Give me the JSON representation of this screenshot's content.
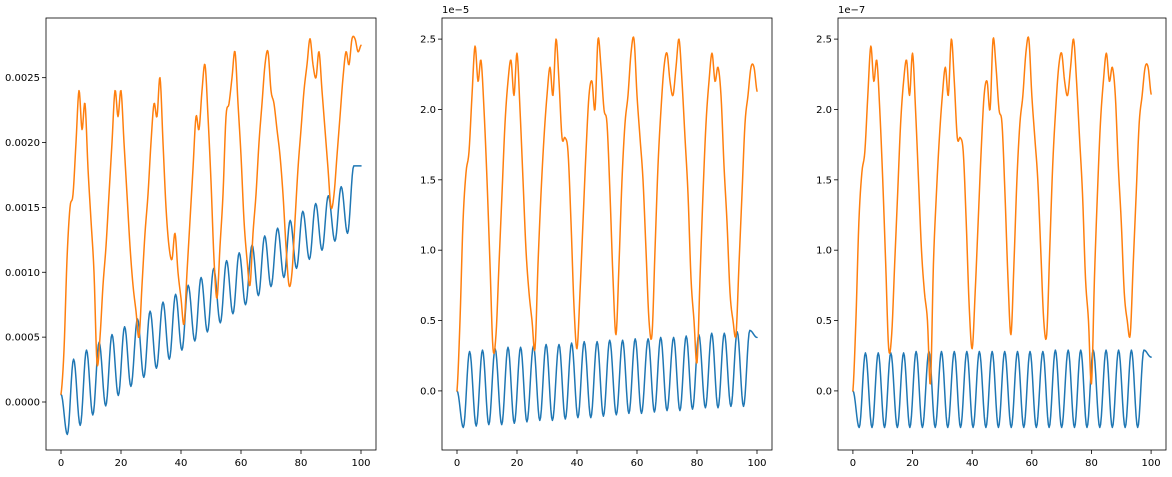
{
  "colors": {
    "series_0": "#1f77b4",
    "series_1": "#ff7f0e"
  },
  "chart_data": [
    {
      "type": "line",
      "xlim": [
        -5,
        105
      ],
      "ylim": [
        -0.00037,
        0.00296
      ],
      "offset_text": "",
      "x_ticks": [
        0,
        20,
        40,
        60,
        80,
        100
      ],
      "x_tick_labels": [
        "0",
        "20",
        "40",
        "60",
        "80",
        "100"
      ],
      "y_ticks": [
        0,
        0.0005,
        0.001,
        0.0015,
        0.002,
        0.0025
      ],
      "y_tick_labels": [
        "0.0000",
        "0.0005",
        "0.0010",
        "0.0015",
        "0.0020",
        "0.0025"
      ],
      "series": [
        {
          "color": "#1f77b4",
          "kind": "oscillation",
          "x": [
            0,
            2.1,
            4.2,
            6.4,
            8.5,
            10.6,
            12.7,
            14.9,
            17.0,
            19.1,
            21.2,
            23.3,
            25.5,
            27.6,
            29.7,
            31.8,
            34.0,
            36.1,
            38.2,
            40.3,
            42.4,
            44.6,
            46.7,
            48.8,
            50.9,
            53.1,
            55.2,
            57.3,
            59.4,
            61.5,
            63.7,
            65.8,
            67.9,
            70.0,
            72.2,
            74.3,
            76.4,
            78.5,
            80.6,
            82.8,
            84.9,
            87.0,
            89.1,
            91.3,
            93.4,
            95.5,
            97.6,
            100
          ],
          "y": [
            6e-05,
            -0.00025,
            0.00033,
            -0.00018,
            0.0004,
            -0.0001,
            0.00046,
            -3e-05,
            0.00052,
            5e-05,
            0.00058,
            0.00012,
            0.00064,
            0.00019,
            0.0007,
            0.00026,
            0.00077,
            0.00033,
            0.00083,
            0.0004,
            0.0009,
            0.00047,
            0.00096,
            0.00054,
            0.00103,
            0.00061,
            0.00109,
            0.00068,
            0.00115,
            0.00075,
            0.00121,
            0.00082,
            0.00128,
            0.00089,
            0.00134,
            0.00096,
            0.0014,
            0.00103,
            0.00147,
            0.0011,
            0.00153,
            0.00117,
            0.00159,
            0.00124,
            0.00166,
            0.0013,
            0.00182,
            0.00182
          ]
        },
        {
          "color": "#ff7f0e",
          "kind": "pulses",
          "x": [
            0,
            1,
            2,
            3,
            4,
            5,
            6,
            7,
            8,
            9,
            10,
            11,
            12,
            13,
            14,
            15,
            16,
            17,
            18,
            19,
            20,
            21,
            22,
            23,
            24,
            25,
            26,
            27,
            28,
            29,
            30,
            31,
            32,
            33,
            34,
            35,
            36,
            37,
            38,
            39,
            40,
            41,
            42,
            43,
            44,
            45,
            46,
            47,
            48,
            49,
            50,
            51,
            52,
            53,
            54,
            55,
            56,
            57,
            58,
            59,
            60,
            61,
            62,
            63,
            64,
            65,
            66,
            67,
            68,
            69,
            70,
            71,
            72,
            73,
            74,
            75,
            76,
            77,
            78,
            79,
            80,
            81,
            82,
            83,
            84,
            85,
            86,
            87,
            88,
            89,
            90,
            91,
            92,
            93,
            94,
            95,
            96,
            97,
            98,
            99,
            100
          ],
          "y": [
            6e-05,
            0.0004,
            0.0011,
            0.0015,
            0.0016,
            0.002,
            0.0024,
            0.0021,
            0.0023,
            0.0018,
            0.0014,
            0.001,
            0.0003,
            0.0005,
            0.0009,
            0.0012,
            0.0016,
            0.002,
            0.0024,
            0.0022,
            0.0024,
            0.002,
            0.0016,
            0.0012,
            0.0009,
            0.0007,
            0.0005,
            0.0009,
            0.0013,
            0.0016,
            0.002,
            0.0023,
            0.0022,
            0.0025,
            0.002,
            0.0015,
            0.0012,
            0.0011,
            0.0013,
            0.001,
            0.0008,
            0.0006,
            0.001,
            0.0014,
            0.0018,
            0.0022,
            0.0021,
            0.0024,
            0.0026,
            0.0022,
            0.0017,
            0.0011,
            0.0008,
            0.0012,
            0.0016,
            0.0022,
            0.0023,
            0.0025,
            0.0027,
            0.0023,
            0.0019,
            0.0014,
            0.0011,
            0.0009,
            0.0013,
            0.0016,
            0.002,
            0.0023,
            0.0026,
            0.0027,
            0.0024,
            0.0023,
            0.0021,
            0.0019,
            0.0016,
            0.0012,
            0.0009,
            0.001,
            0.0014,
            0.0018,
            0.0021,
            0.0024,
            0.0026,
            0.0028,
            0.0026,
            0.0025,
            0.0027,
            0.0024,
            0.0021,
            0.0018,
            0.0015,
            0.0016,
            0.0019,
            0.0022,
            0.0025,
            0.0027,
            0.0026,
            0.0028,
            0.0028,
            0.0027,
            0.00275
          ]
        }
      ]
    },
    {
      "type": "line",
      "xlim": [
        -5,
        105
      ],
      "ylim": [
        -0.42,
        2.65
      ],
      "offset_text": "1e−5",
      "x_ticks": [
        0,
        20,
        40,
        60,
        80,
        100
      ],
      "x_tick_labels": [
        "0",
        "20",
        "40",
        "60",
        "80",
        "100"
      ],
      "y_ticks": [
        0,
        0.5,
        1,
        1.5,
        2,
        2.5
      ],
      "y_tick_labels": [
        "0.0",
        "0.5",
        "1.0",
        "1.5",
        "2.0",
        "2.5"
      ],
      "series": [
        {
          "color": "#1f77b4",
          "kind": "oscillation",
          "x": [
            0,
            2.1,
            4.2,
            6.4,
            8.5,
            10.6,
            12.7,
            14.9,
            17.0,
            19.1,
            21.2,
            23.3,
            25.5,
            27.6,
            29.7,
            31.8,
            34.0,
            36.1,
            38.2,
            40.3,
            42.4,
            44.6,
            46.7,
            48.8,
            50.9,
            53.1,
            55.2,
            57.3,
            59.4,
            61.5,
            63.7,
            65.8,
            67.9,
            70.0,
            72.2,
            74.3,
            76.4,
            78.5,
            80.6,
            82.8,
            84.9,
            87.0,
            89.1,
            91.3,
            93.4,
            95.5,
            97.6,
            100
          ],
          "y": [
            0.0,
            -0.26,
            0.28,
            -0.25,
            0.29,
            -0.24,
            0.3,
            -0.24,
            0.31,
            -0.23,
            0.31,
            -0.22,
            0.32,
            -0.21,
            0.33,
            -0.21,
            0.33,
            -0.2,
            0.34,
            -0.19,
            0.35,
            -0.19,
            0.35,
            -0.18,
            0.36,
            -0.17,
            0.36,
            -0.16,
            0.37,
            -0.16,
            0.37,
            -0.15,
            0.38,
            -0.14,
            0.38,
            -0.14,
            0.39,
            -0.13,
            0.4,
            -0.12,
            0.41,
            -0.12,
            0.41,
            -0.11,
            0.42,
            -0.11,
            0.43,
            0.38
          ]
        },
        {
          "color": "#ff7f0e",
          "kind": "pulses",
          "x": [
            0,
            1,
            2,
            3,
            4,
            5,
            6,
            7,
            8,
            9,
            10,
            11,
            12,
            13,
            14,
            15,
            16,
            17,
            18,
            19,
            20,
            21,
            22,
            23,
            24,
            25,
            26,
            27,
            28,
            29,
            30,
            31,
            32,
            33,
            34,
            35,
            36,
            37,
            38,
            39,
            40,
            41,
            42,
            43,
            44,
            45,
            46,
            47,
            48,
            49,
            50,
            51,
            52,
            53,
            54,
            55,
            56,
            57,
            58,
            59,
            60,
            61,
            62,
            63,
            64,
            65,
            66,
            67,
            68,
            69,
            70,
            71,
            72,
            73,
            74,
            75,
            76,
            77,
            78,
            79,
            80,
            81,
            82,
            83,
            84,
            85,
            86,
            87,
            88,
            89,
            90,
            91,
            92,
            93,
            94,
            95,
            96,
            97,
            98,
            99,
            100
          ],
          "y": [
            0.0,
            0.5,
            1.2,
            1.55,
            1.7,
            2.1,
            2.45,
            2.2,
            2.35,
            2.0,
            1.5,
            0.9,
            0.3,
            0.4,
            0.9,
            1.4,
            1.9,
            2.2,
            2.35,
            2.1,
            2.4,
            2.0,
            1.5,
            1.0,
            0.7,
            0.5,
            0.3,
            0.9,
            1.4,
            1.8,
            2.1,
            2.3,
            2.1,
            2.5,
            2.2,
            1.8,
            1.8,
            1.7,
            1.2,
            0.6,
            0.3,
            0.7,
            1.2,
            1.7,
            2.1,
            2.2,
            2.0,
            2.5,
            2.3,
            2.0,
            1.9,
            1.4,
            0.8,
            0.4,
            0.9,
            1.5,
            1.9,
            2.1,
            2.4,
            2.5,
            2.1,
            1.8,
            1.5,
            1.0,
            0.5,
            0.4,
            1.0,
            1.6,
            2.0,
            2.3,
            2.4,
            2.2,
            2.1,
            2.3,
            2.5,
            2.2,
            1.8,
            1.4,
            0.8,
            0.5,
            0.2,
            0.8,
            1.4,
            1.9,
            2.2,
            2.4,
            2.2,
            2.3,
            2.1,
            1.6,
            1.2,
            0.7,
            0.5,
            0.4,
            0.9,
            1.4,
            1.9,
            2.1,
            2.3,
            2.3,
            2.13
          ]
        }
      ]
    },
    {
      "type": "line",
      "xlim": [
        -5,
        105
      ],
      "ylim": [
        -0.42,
        2.65
      ],
      "offset_text": "1e−7",
      "x_ticks": [
        0,
        20,
        40,
        60,
        80,
        100
      ],
      "x_tick_labels": [
        "0",
        "20",
        "40",
        "60",
        "80",
        "100"
      ],
      "y_ticks": [
        0,
        0.5,
        1,
        1.5,
        2,
        2.5
      ],
      "y_tick_labels": [
        "0.0",
        "0.5",
        "1.0",
        "1.5",
        "2.0",
        "2.5"
      ],
      "series": [
        {
          "color": "#1f77b4",
          "kind": "oscillation",
          "x": [
            0,
            2.1,
            4.2,
            6.4,
            8.5,
            10.6,
            12.7,
            14.9,
            17.0,
            19.1,
            21.2,
            23.3,
            25.5,
            27.6,
            29.7,
            31.8,
            34.0,
            36.1,
            38.2,
            40.3,
            42.4,
            44.6,
            46.7,
            48.8,
            50.9,
            53.1,
            55.2,
            57.3,
            59.4,
            61.5,
            63.7,
            65.8,
            67.9,
            70.0,
            72.2,
            74.3,
            76.4,
            78.5,
            80.6,
            82.8,
            84.9,
            87.0,
            89.1,
            91.3,
            93.4,
            95.5,
            97.6,
            100
          ],
          "y": [
            0.0,
            -0.26,
            0.27,
            -0.26,
            0.27,
            -0.26,
            0.27,
            -0.26,
            0.27,
            -0.26,
            0.28,
            -0.26,
            0.28,
            -0.26,
            0.28,
            -0.26,
            0.28,
            -0.26,
            0.28,
            -0.26,
            0.28,
            -0.26,
            0.28,
            -0.26,
            0.28,
            -0.26,
            0.28,
            -0.26,
            0.28,
            -0.26,
            0.28,
            -0.26,
            0.29,
            -0.26,
            0.29,
            -0.26,
            0.29,
            -0.26,
            0.29,
            -0.26,
            0.29,
            -0.26,
            0.29,
            -0.26,
            0.29,
            -0.26,
            0.29,
            0.24
          ]
        },
        {
          "color": "#ff7f0e",
          "kind": "pulses",
          "x": [
            0,
            1,
            2,
            3,
            4,
            5,
            6,
            7,
            8,
            9,
            10,
            11,
            12,
            13,
            14,
            15,
            16,
            17,
            18,
            19,
            20,
            21,
            22,
            23,
            24,
            25,
            26,
            27,
            28,
            29,
            30,
            31,
            32,
            33,
            34,
            35,
            36,
            37,
            38,
            39,
            40,
            41,
            42,
            43,
            44,
            45,
            46,
            47,
            48,
            49,
            50,
            51,
            52,
            53,
            54,
            55,
            56,
            57,
            58,
            59,
            60,
            61,
            62,
            63,
            64,
            65,
            66,
            67,
            68,
            69,
            70,
            71,
            72,
            73,
            74,
            75,
            76,
            77,
            78,
            79,
            80,
            81,
            82,
            83,
            84,
            85,
            86,
            87,
            88,
            89,
            90,
            91,
            92,
            93,
            94,
            95,
            96,
            97,
            98,
            99,
            100
          ],
          "y": [
            0.0,
            0.5,
            1.2,
            1.55,
            1.7,
            2.1,
            2.45,
            2.2,
            2.35,
            2.0,
            1.5,
            0.9,
            0.3,
            0.4,
            0.9,
            1.4,
            1.9,
            2.2,
            2.35,
            2.1,
            2.4,
            2.0,
            1.5,
            1.0,
            0.7,
            0.5,
            0.05,
            0.9,
            1.4,
            1.8,
            2.1,
            2.3,
            2.1,
            2.5,
            2.2,
            1.8,
            1.8,
            1.7,
            1.2,
            0.6,
            0.3,
            0.7,
            1.2,
            1.7,
            2.1,
            2.2,
            2.0,
            2.5,
            2.3,
            2.0,
            1.9,
            1.4,
            0.8,
            0.4,
            0.9,
            1.5,
            1.9,
            2.1,
            2.4,
            2.5,
            2.1,
            1.8,
            1.5,
            1.0,
            0.5,
            0.4,
            1.0,
            1.6,
            2.0,
            2.3,
            2.4,
            2.2,
            2.1,
            2.3,
            2.5,
            2.2,
            1.8,
            1.4,
            0.8,
            0.5,
            0.05,
            0.8,
            1.4,
            1.9,
            2.2,
            2.4,
            2.2,
            2.3,
            2.1,
            1.6,
            1.2,
            0.7,
            0.5,
            0.4,
            0.9,
            1.4,
            1.9,
            2.1,
            2.3,
            2.3,
            2.11
          ]
        }
      ]
    }
  ]
}
